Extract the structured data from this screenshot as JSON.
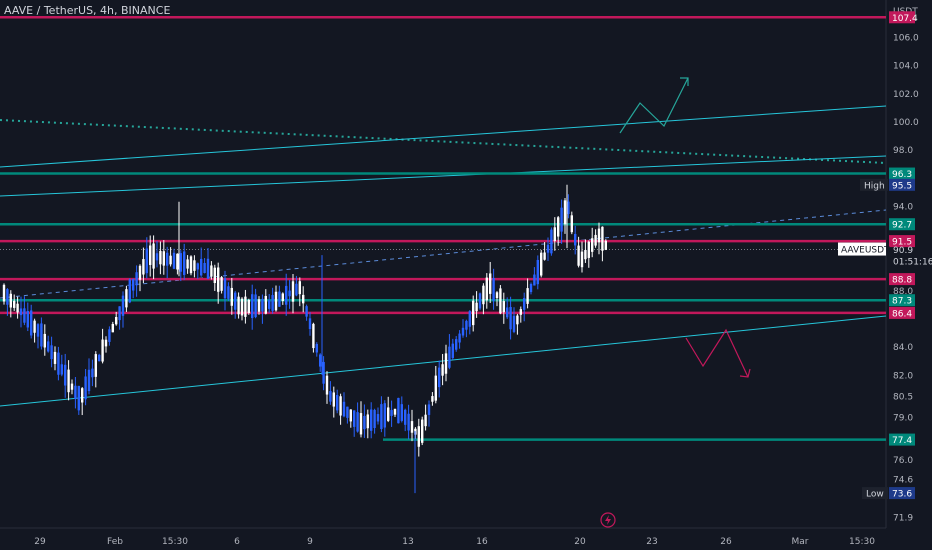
{
  "chart_data": {
    "type": "candlestick",
    "title": "AAVE / TetherUS, 4h, BINANCE",
    "symbol": "AAVEUSDT",
    "currency": "USDT",
    "countdown": "01:51:16",
    "last_price": "90.9",
    "ylim": [
      71.0,
      108.5
    ],
    "y_ticks": [
      "106.0",
      "104.0",
      "102.0",
      "100.0",
      "98.0",
      "94.0",
      "88.0",
      "84.0",
      "82.0",
      "80.5",
      "79.0",
      "76.0",
      "74.6",
      "71.9"
    ],
    "x_ticks": [
      "29",
      "Feb",
      "15:30",
      "6",
      "9",
      "13",
      "16",
      "20",
      "23",
      "26",
      "Mar",
      "15:30"
    ],
    "high_label": "High",
    "high_value": "95.5",
    "low_label": "Low",
    "low_value": "73.6",
    "levels": [
      {
        "value": "107.4",
        "color": "#c2185b"
      },
      {
        "value": "96.3",
        "color": "#00897b"
      },
      {
        "value": "92.7",
        "color": "#00897b"
      },
      {
        "value": "91.5",
        "color": "#c2185b"
      },
      {
        "value": "88.8",
        "color": "#c2185b"
      },
      {
        "value": "87.3",
        "color": "#00897b"
      },
      {
        "value": "86.4",
        "color": "#c2185b"
      },
      {
        "value": "77.4",
        "color": "#00897b"
      }
    ],
    "candle_colors": {
      "up": "#ffffff",
      "down": "#2962ff"
    }
  }
}
